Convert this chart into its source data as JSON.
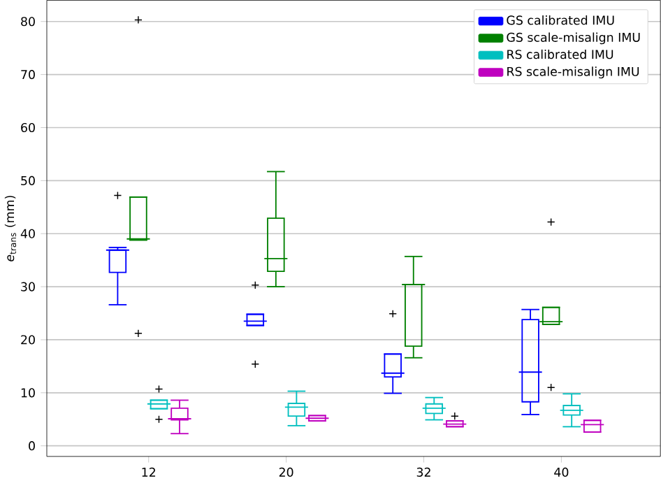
{
  "chart_data": {
    "type": "box",
    "ylabel": "*e*$_{trans}$ (mm)",
    "categories": [
      "12",
      "20",
      "32",
      "40"
    ],
    "ylim": [
      -2,
      84
    ],
    "yticks": [
      0,
      10,
      20,
      30,
      40,
      50,
      60,
      70,
      80
    ],
    "grid": "y",
    "legend": "top right",
    "marker": "cross",
    "series": [
      {
        "name": "GS calibrated IMU",
        "color": "#0000ff",
        "boxes": [
          {
            "low": 26.6,
            "q1": 32.7,
            "median": 36.9,
            "q3": 36.9,
            "high": 37.4,
            "outliers": [
              47.2
            ]
          },
          {
            "low": 22.7,
            "q1": 22.7,
            "median": 23.5,
            "q3": 24.8,
            "high": 24.8,
            "outliers": [
              30.3,
              15.4
            ]
          },
          {
            "low": 9.9,
            "q1": 13.0,
            "median": 13.7,
            "q3": 17.3,
            "high": 17.3,
            "outliers": [
              24.9
            ]
          },
          {
            "low": 5.9,
            "q1": 8.3,
            "median": 13.9,
            "q3": 23.8,
            "high": 25.7
          }
        ]
      },
      {
        "name": "GS scale-misalign IMU",
        "color": "#008000",
        "boxes": [
          {
            "low": 38.8,
            "q1": 38.8,
            "median": 39.0,
            "q3": 46.9,
            "high": 46.9,
            "outliers": [
              80.3,
              21.2
            ]
          },
          {
            "low": 30.0,
            "q1": 32.9,
            "median": 35.3,
            "q3": 42.9,
            "high": 51.7
          },
          {
            "low": 16.6,
            "q1": 18.8,
            "median": 30.4,
            "q3": 30.4,
            "high": 35.7
          },
          {
            "low": 22.9,
            "q1": 22.9,
            "median": 23.4,
            "q3": 26.1,
            "high": 26.1,
            "outliers": [
              42.2,
              11.0
            ]
          }
        ]
      },
      {
        "name": "RS calibrated IMU",
        "color": "#00bfbf",
        "boxes": [
          {
            "low": 7.0,
            "q1": 7.0,
            "median": 7.9,
            "q3": 8.6,
            "high": 8.6,
            "outliers": [
              10.7,
              5.0
            ]
          },
          {
            "low": 3.8,
            "q1": 5.6,
            "median": 7.3,
            "q3": 8.0,
            "high": 10.3
          },
          {
            "low": 4.9,
            "q1": 6.1,
            "median": 7.1,
            "q3": 7.9,
            "high": 9.1
          },
          {
            "low": 3.6,
            "q1": 5.8,
            "median": 6.7,
            "q3": 7.6,
            "high": 9.8
          }
        ]
      },
      {
        "name": "RS scale-misalign IMU",
        "color": "#bf00bf",
        "boxes": [
          {
            "low": 2.3,
            "q1": 4.9,
            "median": 5.1,
            "q3": 7.1,
            "high": 8.6
          },
          {
            "low": 4.7,
            "q1": 4.7,
            "median": 5.2,
            "q3": 5.7,
            "high": 5.7
          },
          {
            "low": 3.6,
            "q1": 3.6,
            "median": 4.1,
            "q3": 4.7,
            "high": 4.7,
            "outliers": [
              5.6
            ]
          },
          {
            "low": 2.6,
            "q1": 2.6,
            "median": 4.0,
            "q3": 4.8,
            "high": 4.8
          }
        ]
      }
    ]
  }
}
